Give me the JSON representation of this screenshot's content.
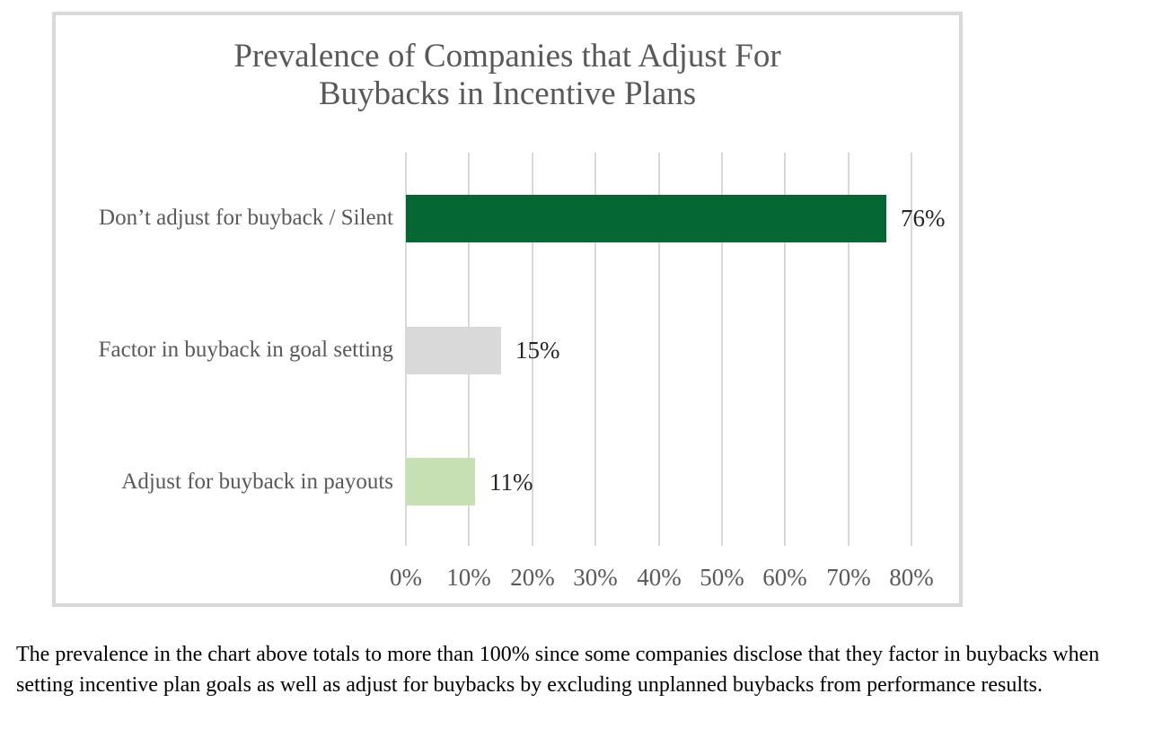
{
  "chart_data": {
    "type": "bar",
    "orientation": "horizontal",
    "title": "Prevalence of Companies that Adjust For Buybacks in Incentive Plans",
    "title_lines": [
      "Prevalence of Companies that Adjust For",
      "Buybacks in Incentive Plans"
    ],
    "categories": [
      "Don’t adjust for buyback / Silent",
      "Factor in buyback in goal setting",
      "Adjust for buyback in payouts"
    ],
    "values": [
      76,
      15,
      11
    ],
    "value_labels": [
      "76%",
      "15%",
      "11%"
    ],
    "bar_colors": [
      "#046633",
      "#D9D9D9",
      "#C6E0B4"
    ],
    "x_ticks": [
      "0%",
      "10%",
      "20%",
      "30%",
      "40%",
      "50%",
      "60%",
      "70%",
      "80%"
    ],
    "x_tick_values": [
      0,
      10,
      20,
      30,
      40,
      50,
      60,
      70,
      80
    ],
    "xlim": [
      0,
      80
    ],
    "xlabel": "",
    "ylabel": "",
    "grid": true,
    "legend": false
  },
  "caption": {
    "line1": "The prevalence in the chart above totals to more than 100% since some companies disclose that they factor in buybacks when",
    "line2": "setting incentive plan goals as well as adjust for buybacks by excluding unplanned buybacks from performance results."
  },
  "colors": {
    "bar_dark_green": "#046633",
    "bar_gray": "#D9D9D9",
    "bar_light_green": "#C6E0B4",
    "gridline": "#D9D9D9",
    "frame_border": "#D9D9D9",
    "title_text": "#595959",
    "axis_text": "#595959",
    "category_text": "#595959",
    "value_text": "#262626",
    "caption_text": "#000000",
    "background": "#FFFFFF"
  }
}
